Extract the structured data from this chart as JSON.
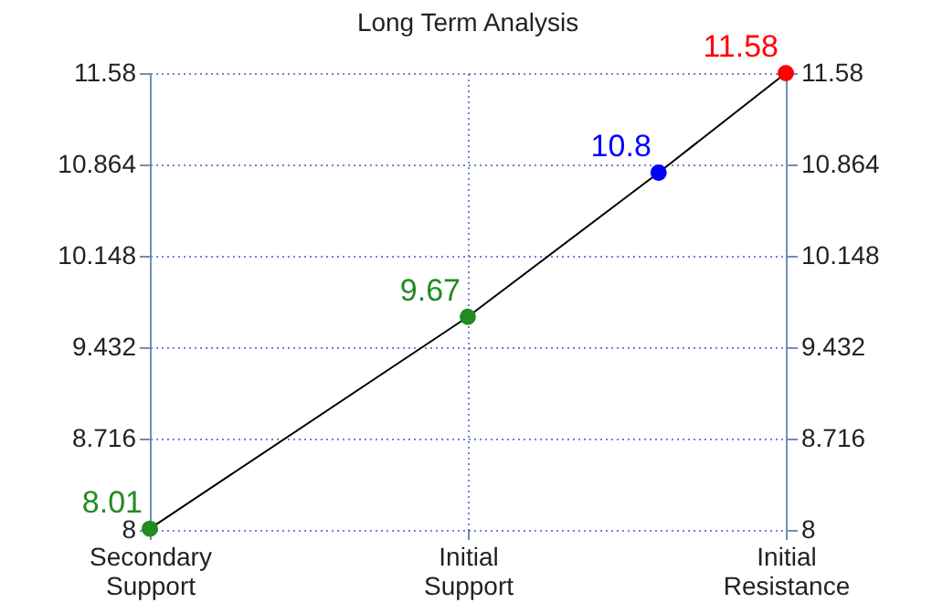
{
  "chart_data": {
    "type": "line",
    "title": "Long Term Analysis",
    "categories": [
      "Secondary Support",
      null,
      null,
      null,
      null,
      "Initial Support",
      null,
      null,
      null,
      null,
      "Initial Resistance"
    ],
    "ylim": [
      8,
      11.58
    ],
    "yticks": [
      8,
      8.716,
      9.432,
      10.148,
      10.864,
      11.58
    ],
    "y2lim": [
      8,
      11.58
    ],
    "y2ticks": [
      8,
      8.716,
      9.432,
      10.148,
      10.864,
      11.58
    ],
    "grid": true,
    "legend": false,
    "series": [
      {
        "type": "line",
        "color": "#000000",
        "marker": "none",
        "line_style": "solid",
        "values": [
          8.01,
          null,
          null,
          null,
          null,
          9.67,
          null,
          null,
          10.8,
          null,
          11.58
        ]
      },
      {
        "type": "scatter",
        "marker": "circle",
        "colors": [
          "#228b22",
          null,
          null,
          null,
          null,
          "#228b22",
          null,
          null,
          "#0000ff",
          null,
          "#ff0000"
        ],
        "values": [
          8.01,
          null,
          null,
          null,
          null,
          9.67,
          null,
          null,
          10.8,
          null,
          11.58
        ],
        "value_labels": [
          "8.01",
          null,
          null,
          null,
          null,
          "9.67",
          null,
          null,
          "10.8",
          null,
          "11.58"
        ]
      }
    ]
  }
}
